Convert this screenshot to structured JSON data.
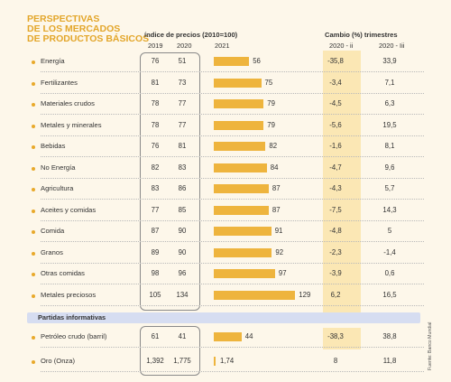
{
  "title_lines": [
    "PERSPECTIVAS",
    "DE LOS MERCADOS",
    "DE PRODUCTOS BÁSICOS"
  ],
  "headers": {
    "index_title": "índice de precios (2010=100)",
    "change_title": "Cambio (%) trimestres",
    "y2019": "2019",
    "y2020": "2020",
    "y2021": "2021",
    "q2": "2020 - ii",
    "q3": "2020 - Iii"
  },
  "section_label": "Partidas informativas",
  "source": "Fuente: Banco Mundial",
  "chart_data": {
    "type": "table",
    "bar_column": "2021",
    "rows": [
      {
        "name": "Energía",
        "y2019": "76",
        "y2020": "51",
        "y2021": "56",
        "v2021": 56,
        "q2": "-35,8",
        "q3": "33,9"
      },
      {
        "name": "Fertilizantes",
        "y2019": "81",
        "y2020": "73",
        "y2021": "75",
        "v2021": 75,
        "q2": "-3,4",
        "q3": "7,1"
      },
      {
        "name": "Materiales crudos",
        "y2019": "78",
        "y2020": "77",
        "y2021": "79",
        "v2021": 79,
        "q2": "-4,5",
        "q3": "6,3"
      },
      {
        "name": "Metales y minerales",
        "y2019": "78",
        "y2020": "77",
        "y2021": "79",
        "v2021": 79,
        "q2": "-5,6",
        "q3": "19,5"
      },
      {
        "name": "Bebidas",
        "y2019": "76",
        "y2020": "81",
        "y2021": "82",
        "v2021": 82,
        "q2": "-1,6",
        "q3": "8,1"
      },
      {
        "name": "No Energía",
        "y2019": "82",
        "y2020": "83",
        "y2021": "84",
        "v2021": 84,
        "q2": "-4,7",
        "q3": "9,6"
      },
      {
        "name": "Agricultura",
        "y2019": "83",
        "y2020": "86",
        "y2021": "87",
        "v2021": 87,
        "q2": "-4,3",
        "q3": "5,7"
      },
      {
        "name": "Aceites y comidas",
        "y2019": "77",
        "y2020": "85",
        "y2021": "87",
        "v2021": 87,
        "q2": "-7,5",
        "q3": "14,3"
      },
      {
        "name": "Comida",
        "y2019": "87",
        "y2020": "90",
        "y2021": "91",
        "v2021": 91,
        "q2": "-4,8",
        "q3": "5"
      },
      {
        "name": "Granos",
        "y2019": "89",
        "y2020": "90",
        "y2021": "92",
        "v2021": 92,
        "q2": "-2,3",
        "q3": "-1,4"
      },
      {
        "name": "Otras comidas",
        "y2019": "98",
        "y2020": "96",
        "y2021": "97",
        "v2021": 97,
        "q2": "-3,9",
        "q3": "0,6"
      },
      {
        "name": "Metales preciosos",
        "y2019": "105",
        "y2020": "134",
        "y2021": "129",
        "v2021": 129,
        "q2": "6,2",
        "q3": "16,5"
      }
    ],
    "memo_rows": [
      {
        "name": "Petróleo crudo (barril)",
        "y2019": "61",
        "y2020": "41",
        "y2021": "44",
        "v2021": 44,
        "q2": "-38,3",
        "q3": "38,8"
      },
      {
        "name": "Oro (Onza)",
        "y2019": "1,392",
        "y2020": "1,775",
        "y2021": "1,74",
        "v2021": 1.74,
        "q2": "8",
        "q3": "11,8"
      }
    ]
  },
  "colors": {
    "bar": "#eeb43d",
    "accent": "#e3a62a",
    "highlight": "#fbe7b4",
    "section": "#d6ddf1"
  }
}
